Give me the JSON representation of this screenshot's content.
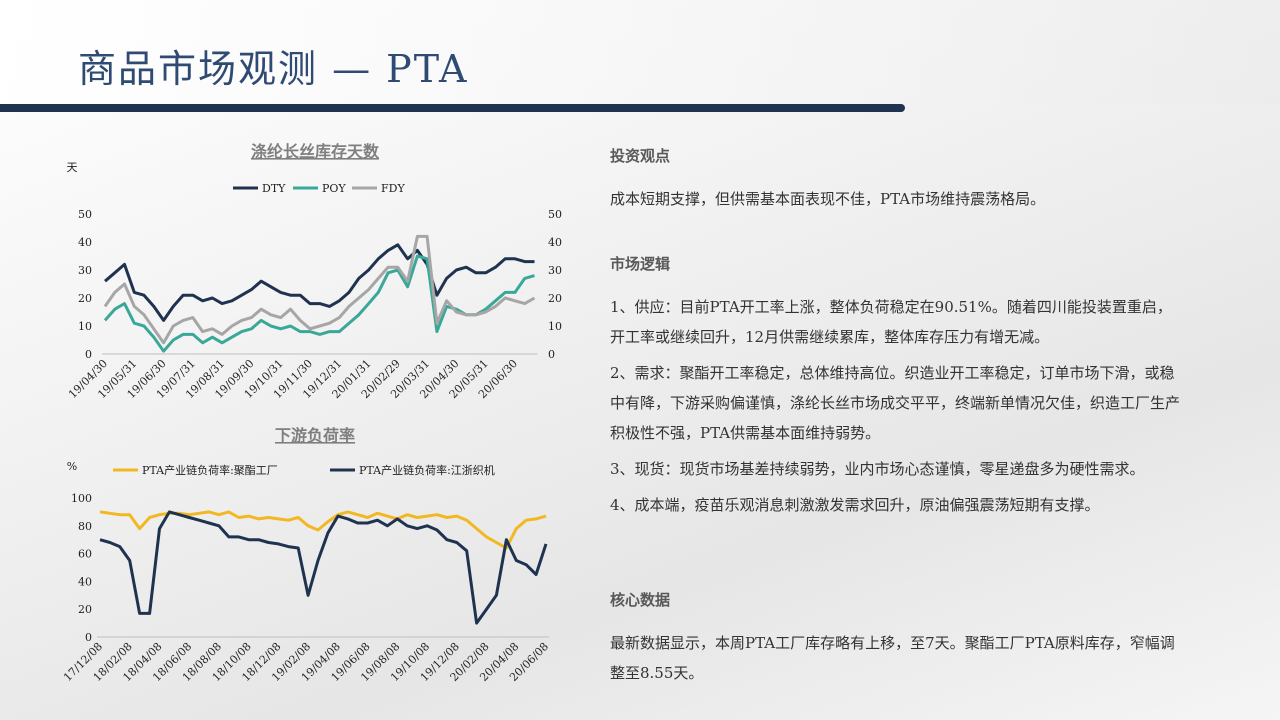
{
  "header": {
    "title": "商品市场观测 — PTA"
  },
  "chart_data": [
    {
      "type": "line",
      "title": "涤纶长丝库存天数",
      "y_label": "天",
      "categories": [
        "19/04/30",
        null,
        null,
        "19/05/31",
        null,
        null,
        "19/06/30",
        null,
        null,
        "19/07/31",
        null,
        null,
        "19/08/31",
        null,
        null,
        "19/09/30",
        null,
        null,
        "19/10/31",
        null,
        null,
        "19/11/30",
        null,
        null,
        "19/12/31",
        null,
        null,
        "20/01/31",
        null,
        null,
        "20/02/29",
        null,
        null,
        "20/03/31",
        null,
        null,
        "20/04/30",
        null,
        null,
        "20/05/31",
        null,
        null,
        "20/06/30",
        null,
        null
      ],
      "series": [
        {
          "name": "DTY",
          "color": "#1f3350",
          "values": [
            26,
            29,
            32,
            22,
            21,
            17,
            12,
            17,
            21,
            21,
            19,
            20,
            18,
            19,
            21,
            23,
            26,
            24,
            22,
            21,
            21,
            18,
            18,
            17,
            19,
            22,
            27,
            30,
            34,
            37,
            39,
            34,
            37,
            32,
            21,
            27,
            30,
            31,
            29,
            29,
            31,
            34,
            34,
            33,
            33
          ]
        },
        {
          "name": "POY",
          "color": "#3aa898",
          "values": [
            12,
            16,
            18,
            11,
            10,
            6,
            1,
            5,
            7,
            7,
            4,
            6,
            4,
            6,
            8,
            9,
            12,
            10,
            9,
            10,
            8,
            8,
            7,
            8,
            8,
            11,
            14,
            18,
            22,
            29,
            30,
            24,
            35,
            34,
            8,
            17,
            16,
            14,
            14,
            16,
            19,
            22,
            22,
            27,
            28
          ]
        },
        {
          "name": "FDY",
          "color": "#a6a6a6",
          "values": [
            17,
            22,
            25,
            17,
            14,
            9,
            4,
            10,
            12,
            13,
            8,
            9,
            7,
            10,
            12,
            13,
            16,
            14,
            13,
            16,
            12,
            9,
            10,
            11,
            13,
            17,
            20,
            23,
            27,
            31,
            31,
            26,
            42,
            42,
            11,
            19,
            15,
            14,
            14,
            15,
            17,
            20,
            19,
            18,
            20
          ]
        }
      ],
      "ylim": [
        0,
        50
      ],
      "yticks": [
        0,
        10,
        20,
        30,
        40,
        50
      ],
      "y2lim": [
        0,
        50
      ],
      "y2ticks": [
        0,
        10,
        20,
        30,
        40,
        50
      ]
    },
    {
      "type": "line",
      "title": "下游负荷率",
      "y_label": "%",
      "categories": [
        "17/12/08",
        null,
        null,
        "18/02/08",
        null,
        null,
        "18/04/08",
        null,
        null,
        "18/06/08",
        null,
        null,
        "18/08/08",
        null,
        null,
        "18/10/08",
        null,
        null,
        "18/12/08",
        null,
        null,
        "19/02/08",
        null,
        null,
        "19/04/08",
        null,
        null,
        "19/06/08",
        null,
        null,
        "19/08/08",
        null,
        null,
        "19/10/08",
        null,
        null,
        "19/12/08",
        null,
        null,
        "20/02/08",
        null,
        null,
        "20/04/08",
        null,
        null,
        "20/06/08"
      ],
      "series": [
        {
          "name": "PTA产业链负荷率:聚酯工厂",
          "color": "#f2b822",
          "values": [
            90,
            89,
            88,
            88,
            78,
            86,
            88,
            89,
            89,
            88,
            89,
            90,
            88,
            90,
            86,
            87,
            85,
            86,
            85,
            84,
            86,
            80,
            77,
            83,
            88,
            90,
            88,
            86,
            89,
            87,
            85,
            88,
            86,
            87,
            88,
            86,
            87,
            84,
            78,
            72,
            68,
            64,
            78,
            84,
            85,
            87
          ]
        },
        {
          "name": "PTA产业链负荷率:江浙织机",
          "color": "#1f3350",
          "values": [
            70,
            68,
            65,
            55,
            17,
            17,
            78,
            90,
            88,
            86,
            84,
            82,
            80,
            72,
            72,
            70,
            70,
            68,
            67,
            65,
            64,
            30,
            55,
            75,
            87,
            85,
            82,
            82,
            84,
            80,
            85,
            80,
            78,
            80,
            77,
            70,
            68,
            62,
            10,
            20,
            30,
            70,
            55,
            52,
            45,
            67
          ]
        }
      ],
      "ylim": [
        0,
        100
      ],
      "yticks": [
        0,
        20,
        40,
        60,
        80,
        100
      ]
    }
  ],
  "sections": [
    {
      "heading": "投资观点",
      "paragraphs": [
        "成本短期支撑，但供需基本面表现不佳，PTA市场维持震荡格局。"
      ]
    },
    {
      "heading": "市场逻辑",
      "paragraphs": [
        "1、供应：目前PTA开工率上涨，整体负荷稳定在90.51%。随着四川能投装置重启，开工率或继续回升，12月供需继续累库，整体库存压力有增无减。",
        "2、需求：聚酯开工率稳定，总体维持高位。织造业开工率稳定，订单市场下滑，或稳中有降，下游采购偏谨慎，涤纶长丝市场成交平平，终端新单情况欠佳，织造工厂生产积极性不强，PTA供需基本面维持弱势。",
        "3、现货：现货市场基差持续弱势，业内市场心态谨慎，零星递盘多为硬性需求。",
        "4、成本端，疫苗乐观消息刺激激发需求回升，原油偏强震荡短期有支撑。"
      ]
    },
    {
      "heading": "核心数据",
      "paragraphs": [
        "最新数据显示，本周PTA工厂库存略有上移，至7天。聚酯工厂PTA原料库存，窄幅调整至8.55天。"
      ]
    }
  ]
}
